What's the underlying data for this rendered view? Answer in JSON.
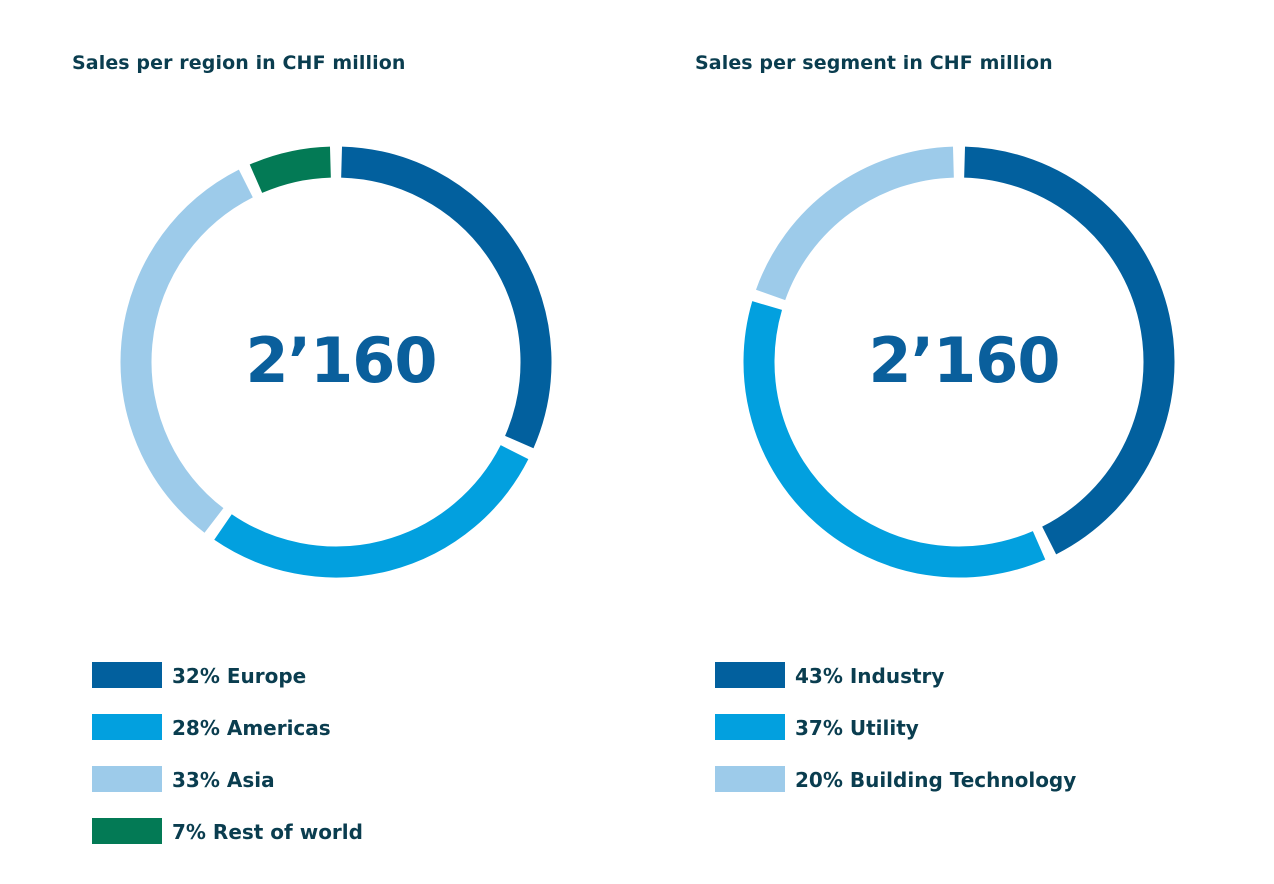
{
  "chart_data": [
    {
      "type": "pie",
      "title": "Sales per region in CHF million",
      "center_label": "2’160",
      "slices": [
        {
          "label": "32% Europe",
          "name": "Europe",
          "value": 32,
          "color": "#02609e"
        },
        {
          "label": "28% Americas",
          "name": "Americas",
          "value": 28,
          "color": "#02a0df"
        },
        {
          "label": "33% Asia",
          "name": "Asia",
          "value": 33,
          "color": "#9dcbea"
        },
        {
          "label": "7% Rest of world",
          "name": "Rest of world",
          "value": 7,
          "color": "#037a55"
        }
      ]
    },
    {
      "type": "pie",
      "title": "Sales per segment in CHF million",
      "center_label": "2’160",
      "slices": [
        {
          "label": "43% Industry",
          "name": "Industry",
          "value": 43,
          "color": "#02609e"
        },
        {
          "label": "37% Utility",
          "name": "Utility",
          "value": 37,
          "color": "#02a0df"
        },
        {
          "label": "20% Building Technology",
          "name": "Building Technology",
          "value": 20,
          "color": "#9dcbea"
        }
      ]
    }
  ]
}
